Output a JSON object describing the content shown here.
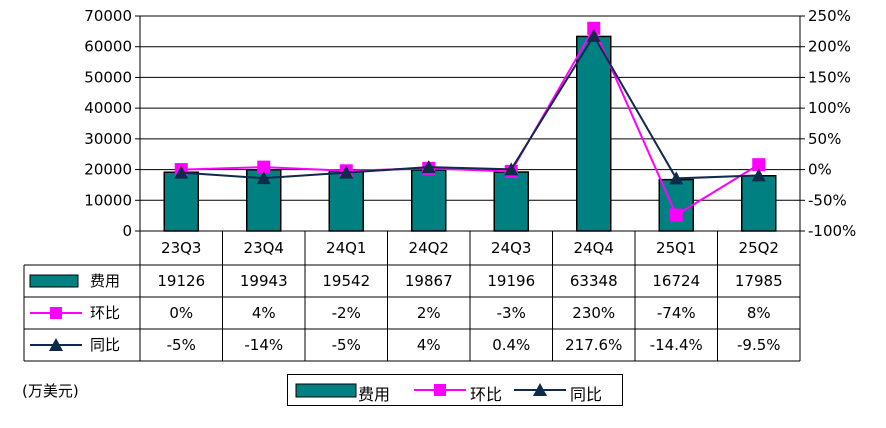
{
  "chart_data": {
    "type": "bar",
    "categories": [
      "23Q3",
      "23Q4",
      "24Q1",
      "24Q2",
      "24Q3",
      "24Q4",
      "25Q1",
      "25Q2"
    ],
    "y_left": {
      "min": 0,
      "max": 70000,
      "step": 10000,
      "ticks": [
        "0",
        "10000",
        "20000",
        "30000",
        "40000",
        "50000",
        "60000",
        "70000"
      ]
    },
    "y_right": {
      "min": -100,
      "max": 250,
      "step": 50,
      "ticks": [
        "-100%",
        "-50%",
        "0%",
        "50%",
        "100%",
        "150%",
        "200%",
        "250%"
      ]
    },
    "series": [
      {
        "name": "费用",
        "kind": "bar",
        "axis": "left",
        "color": "#008080",
        "values": [
          19126,
          19943,
          19542,
          19867,
          19196,
          63348,
          16724,
          17985
        ],
        "labels": [
          "19126",
          "19943",
          "19542",
          "19867",
          "19196",
          "63348",
          "16724",
          "17985"
        ]
      },
      {
        "name": "环比",
        "kind": "line",
        "axis": "right",
        "color": "#FF00FF",
        "marker": "square",
        "values": [
          0,
          4,
          -2,
          2,
          -3,
          230,
          -74,
          8
        ],
        "labels": [
          "0%",
          "4%",
          "-2%",
          "2%",
          "-3%",
          "230%",
          "-74%",
          "8%"
        ]
      },
      {
        "name": "同比",
        "kind": "line",
        "axis": "right",
        "color": "#0F2A4A",
        "marker": "triangle",
        "values": [
          -5,
          -14,
          -5,
          4,
          0.4,
          217.6,
          -14.4,
          -9.5
        ],
        "labels": [
          "-5%",
          "-14%",
          "-5%",
          "4%",
          "0.4%",
          "217.6%",
          "-14.4%",
          "-9.5%"
        ]
      }
    ],
    "grid": true,
    "legend_position": "bottom",
    "unit_label": "(万美元)"
  }
}
